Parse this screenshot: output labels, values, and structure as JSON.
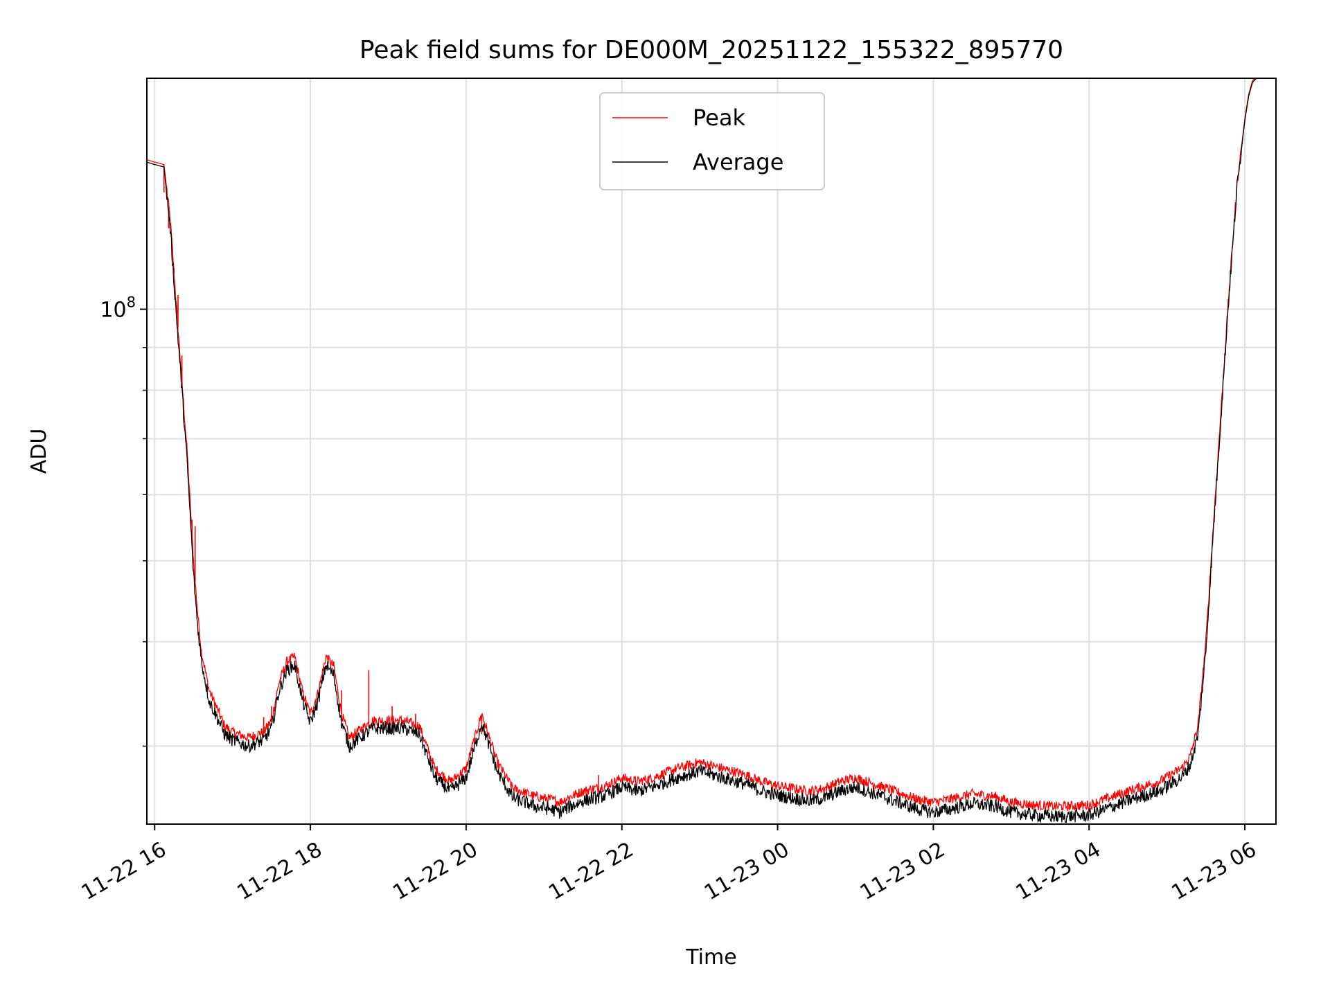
{
  "chart_data": {
    "type": "line",
    "title": "Peak field sums for DE000M_20251122_155322_895770",
    "xlabel": "Time",
    "ylabel": "ADU",
    "yscale": "log",
    "grid": true,
    "legend_position": "top-center",
    "xlim_hours": [
      -0.1,
      14.4
    ],
    "ylim": [
      24200000,
      189000000
    ],
    "x_ticks": [
      {
        "hours": 0,
        "label": "11-22 16"
      },
      {
        "hours": 2,
        "label": "11-22 18"
      },
      {
        "hours": 4,
        "label": "11-22 20"
      },
      {
        "hours": 6,
        "label": "11-22 22"
      },
      {
        "hours": 8,
        "label": "11-23 00"
      },
      {
        "hours": 10,
        "label": "11-23 02"
      },
      {
        "hours": 12,
        "label": "11-23 04"
      },
      {
        "hours": 14,
        "label": "11-23 06"
      }
    ],
    "y_major_ticks": [
      {
        "value": 100000000,
        "base": "10",
        "exponent": "8"
      }
    ],
    "y_minor_ticks": [
      30000000,
      40000000,
      50000000,
      60000000,
      70000000,
      80000000,
      90000000
    ],
    "x_units": "hours after 11-22 16:00",
    "series": [
      {
        "name": "Average",
        "color": "#000000",
        "x": [
          -0.1,
          0.0,
          0.12,
          0.2,
          0.28,
          0.35,
          0.42,
          0.5,
          0.55,
          0.6,
          0.7,
          0.8,
          0.9,
          1.0,
          1.2,
          1.4,
          1.5,
          1.6,
          1.7,
          1.8,
          1.9,
          2.0,
          2.1,
          2.2,
          2.3,
          2.4,
          2.5,
          2.6,
          2.7,
          2.8,
          3.0,
          3.2,
          3.4,
          3.6,
          3.8,
          4.0,
          4.2,
          4.4,
          4.6,
          4.7,
          4.8,
          4.9,
          5.0,
          5.1,
          5.2,
          5.3,
          5.5,
          5.8,
          6.0,
          6.2,
          6.4,
          6.7,
          7.0,
          7.3,
          7.6,
          7.8,
          8.0,
          8.2,
          8.4,
          8.6,
          8.8,
          9.0,
          9.3,
          9.6,
          9.8,
          10.0,
          10.2,
          10.5,
          10.8,
          11.0,
          11.3,
          11.6,
          12.0,
          12.3,
          12.6,
          12.9,
          13.1,
          13.2,
          13.3,
          13.4,
          13.5,
          13.6,
          13.7,
          13.8,
          13.9,
          14.0,
          14.05,
          14.1,
          14.15,
          14.2,
          14.3
        ],
        "values": [
          150000000,
          149000000,
          148000000,
          125000000,
          98000000,
          80000000,
          65000000,
          48000000,
          42000000,
          38000000,
          34000000,
          32500000,
          31000000,
          30500000,
          30000000,
          30500000,
          31500000,
          35000000,
          37000000,
          37500000,
          34000000,
          32000000,
          34000000,
          37500000,
          36500000,
          32000000,
          30000000,
          30500000,
          31000000,
          31500000,
          31500000,
          31500000,
          31000000,
          27500000,
          26500000,
          27500000,
          32000000,
          28000000,
          26000000,
          25800000,
          25600000,
          25400000,
          25300000,
          25200000,
          25000000,
          25300000,
          25800000,
          26200000,
          26800000,
          26500000,
          26800000,
          27500000,
          28000000,
          27500000,
          27000000,
          26500000,
          26200000,
          26000000,
          25800000,
          26000000,
          26500000,
          26800000,
          26200000,
          25600000,
          25200000,
          25000000,
          25200000,
          25600000,
          25400000,
          25000000,
          24800000,
          24700000,
          24800000,
          25400000,
          26000000,
          26500000,
          27200000,
          27600000,
          28500000,
          31000000,
          39000000,
          55000000,
          76000000,
          105000000,
          140000000,
          168000000,
          180000000,
          187000000,
          189000000,
          189000000,
          189000000
        ]
      },
      {
        "name": "Peak",
        "color": "#ff0000",
        "x": [
          -0.1,
          0.0,
          0.12,
          0.2,
          0.28,
          0.35,
          0.42,
          0.5,
          0.55,
          0.6,
          0.7,
          0.8,
          0.9,
          1.0,
          1.2,
          1.4,
          1.5,
          1.6,
          1.7,
          1.8,
          1.9,
          2.0,
          2.1,
          2.2,
          2.3,
          2.4,
          2.5,
          2.6,
          2.7,
          2.8,
          3.0,
          3.2,
          3.4,
          3.6,
          3.8,
          4.0,
          4.2,
          4.4,
          4.6,
          4.7,
          4.8,
          4.9,
          5.0,
          5.1,
          5.2,
          5.3,
          5.5,
          5.8,
          6.0,
          6.2,
          6.4,
          6.7,
          7.0,
          7.3,
          7.6,
          7.8,
          8.0,
          8.2,
          8.4,
          8.6,
          8.8,
          9.0,
          9.3,
          9.6,
          9.8,
          10.0,
          10.2,
          10.5,
          10.8,
          11.0,
          11.3,
          11.6,
          12.0,
          12.3,
          12.6,
          12.9,
          13.1,
          13.2,
          13.3,
          13.4,
          13.5,
          13.6,
          13.7,
          13.8,
          13.9,
          14.0,
          14.05,
          14.1,
          14.15,
          14.2,
          14.3
        ],
        "values": [
          151000000,
          150000000,
          149000000,
          128000000,
          101000000,
          82000000,
          67000000,
          50000000,
          43500000,
          39000000,
          35000000,
          33300000,
          31700000,
          31200000,
          30700000,
          31200000,
          32200000,
          35800000,
          37900000,
          38400000,
          34800000,
          32800000,
          34800000,
          38400000,
          37400000,
          32800000,
          30700000,
          31200000,
          31700000,
          32200000,
          32200000,
          32200000,
          31700000,
          28200000,
          27200000,
          28200000,
          32800000,
          28700000,
          26700000,
          26500000,
          26300000,
          26100000,
          26000000,
          25900000,
          25700000,
          26000000,
          26500000,
          26900000,
          27500000,
          27200000,
          27500000,
          28200000,
          28700000,
          28200000,
          27700000,
          27200000,
          26900000,
          26700000,
          26500000,
          26700000,
          27200000,
          27500000,
          26900000,
          26300000,
          25900000,
          25700000,
          25900000,
          26300000,
          26100000,
          25700000,
          25500000,
          25400000,
          25500000,
          26100000,
          26700000,
          27200000,
          27900000,
          28300000,
          29200000,
          31800000,
          40000000,
          56000000,
          77000000,
          106000000,
          141000000,
          169000000,
          181000000,
          188000000,
          189000000,
          189000000,
          189000000
        ]
      }
    ],
    "spikes": [
      {
        "series": "Peak",
        "x": 0.12,
        "value": 138000000
      },
      {
        "series": "Peak",
        "x": 0.18,
        "value": 125000000
      },
      {
        "series": "Peak",
        "x": 0.25,
        "value": 112000000
      },
      {
        "series": "Peak",
        "x": 0.3,
        "value": 104000000
      },
      {
        "series": "Peak",
        "x": 0.35,
        "value": 88000000
      },
      {
        "series": "Peak",
        "x": 0.48,
        "value": 56000000
      },
      {
        "series": "Peak",
        "x": 0.52,
        "value": 55000000
      },
      {
        "series": "Peak",
        "x": 1.4,
        "value": 32500000
      },
      {
        "series": "Peak",
        "x": 1.5,
        "value": 33500000
      },
      {
        "series": "Peak",
        "x": 2.4,
        "value": 35000000
      },
      {
        "series": "Peak",
        "x": 2.75,
        "value": 37000000
      },
      {
        "series": "Peak",
        "x": 3.05,
        "value": 33500000
      },
      {
        "series": "Peak",
        "x": 3.35,
        "value": 32800000
      },
      {
        "series": "Peak",
        "x": 4.2,
        "value": 31000000
      },
      {
        "series": "Peak",
        "x": 5.7,
        "value": 27700000
      }
    ]
  }
}
